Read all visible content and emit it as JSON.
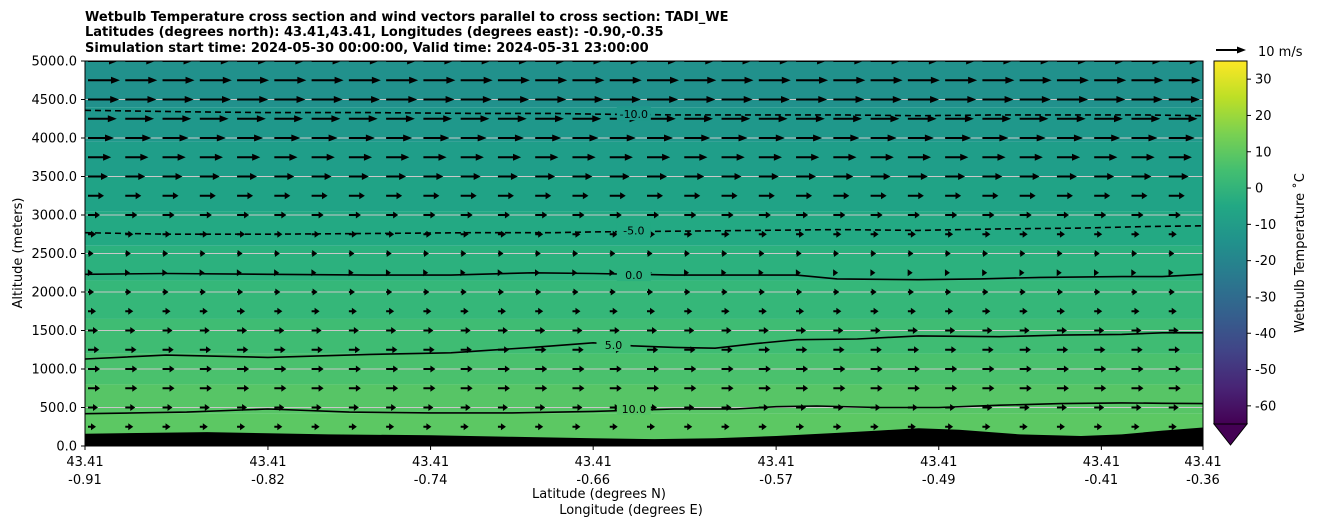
{
  "chart_data": {
    "type": "heatmap",
    "title_lines": [
      "Wetbulb Temperature cross section and wind vectors parallel to cross section: TADI_WE",
      "Latitudes (degrees north): 43.41,43.41, Longitudes (degrees east): -0.90,-0.35",
      "Simulation start time: 2024-05-30 00:00:00, Valid time: 2024-05-31 23:00:00"
    ],
    "ylabel": "Altitude (meters)",
    "xlabel_lines": [
      "Latitude (degrees N)",
      "Longitude (degrees E)"
    ],
    "ylim": [
      0,
      5000
    ],
    "y_ticks": [
      {
        "value": 0,
        "label": "0.0"
      },
      {
        "value": 500,
        "label": "500.0"
      },
      {
        "value": 1000,
        "label": "1000.0"
      },
      {
        "value": 1500,
        "label": "1500.0"
      },
      {
        "value": 2000,
        "label": "2000.0"
      },
      {
        "value": 2500,
        "label": "2500.0"
      },
      {
        "value": 3000,
        "label": "3000.0"
      },
      {
        "value": 3500,
        "label": "3500.0"
      },
      {
        "value": 4000,
        "label": "4000.0"
      },
      {
        "value": 4500,
        "label": "4500.0"
      },
      {
        "value": 5000,
        "label": "5000.0"
      }
    ],
    "xlim": [
      -0.91,
      -0.36
    ],
    "x_ticks": [
      {
        "value": -0.91,
        "lat": "43.41",
        "lon": "-0.91"
      },
      {
        "value": -0.82,
        "lat": "43.41",
        "lon": "-0.82"
      },
      {
        "value": -0.74,
        "lat": "43.41",
        "lon": "-0.74"
      },
      {
        "value": -0.66,
        "lat": "43.41",
        "lon": "-0.66"
      },
      {
        "value": -0.57,
        "lat": "43.41",
        "lon": "-0.57"
      },
      {
        "value": -0.49,
        "lat": "43.41",
        "lon": "-0.49"
      },
      {
        "value": -0.41,
        "lat": "43.41",
        "lon": "-0.41"
      },
      {
        "value": -0.36,
        "lat": "43.41",
        "lon": "-0.36"
      }
    ],
    "grid": "horizontal",
    "altitude_bands": [
      {
        "from": 0,
        "to": 420,
        "color": "#5cc863"
      },
      {
        "from": 420,
        "to": 800,
        "color": "#57c566"
      },
      {
        "from": 800,
        "to": 1200,
        "color": "#4ac16d"
      },
      {
        "from": 1200,
        "to": 1650,
        "color": "#3fbc73"
      },
      {
        "from": 1650,
        "to": 2150,
        "color": "#35b779"
      },
      {
        "from": 2150,
        "to": 2600,
        "color": "#2cb17e"
      },
      {
        "from": 2600,
        "to": 3050,
        "color": "#23a983"
      },
      {
        "from": 3050,
        "to": 3500,
        "color": "#20a386"
      },
      {
        "from": 3500,
        "to": 3950,
        "color": "#1f9e89"
      },
      {
        "from": 3950,
        "to": 4400,
        "color": "#1f988b"
      },
      {
        "from": 4400,
        "to": 5000,
        "color": "#21918c"
      }
    ],
    "terrain": {
      "color": "#000000",
      "x": [
        -0.91,
        -0.85,
        -0.79,
        -0.74,
        -0.7,
        -0.66,
        -0.63,
        -0.6,
        -0.57,
        -0.54,
        -0.52,
        -0.5,
        -0.48,
        -0.45,
        -0.42,
        -0.4,
        -0.38,
        -0.36
      ],
      "y": [
        160,
        180,
        150,
        140,
        120,
        100,
        90,
        100,
        130,
        170,
        200,
        230,
        210,
        150,
        130,
        150,
        200,
        240
      ]
    },
    "contours": [
      {
        "level": "10.0",
        "style": "solid",
        "label_x": -0.64,
        "label_y": 480,
        "x": [
          -0.91,
          -0.86,
          -0.82,
          -0.78,
          -0.74,
          -0.7,
          -0.66,
          -0.62,
          -0.59,
          -0.57,
          -0.55,
          -0.52,
          -0.49,
          -0.46,
          -0.43,
          -0.4,
          -0.38,
          -0.36
        ],
        "y": [
          420,
          440,
          480,
          440,
          430,
          430,
          450,
          480,
          480,
          510,
          520,
          500,
          500,
          530,
          550,
          560,
          555,
          550
        ]
      },
      {
        "level": "5.0",
        "style": "solid",
        "label_x": -0.65,
        "label_y": 1310,
        "x": [
          -0.91,
          -0.87,
          -0.82,
          -0.77,
          -0.73,
          -0.69,
          -0.66,
          -0.64,
          -0.62,
          -0.6,
          -0.58,
          -0.56,
          -0.53,
          -0.5,
          -0.46,
          -0.43,
          -0.4,
          -0.38,
          -0.36
        ],
        "y": [
          1130,
          1180,
          1150,
          1190,
          1210,
          1280,
          1340,
          1300,
          1280,
          1270,
          1330,
          1380,
          1390,
          1430,
          1420,
          1440,
          1450,
          1470,
          1470
        ]
      },
      {
        "level": "0.0",
        "style": "solid",
        "label_x": -0.64,
        "label_y": 2220,
        "x": [
          -0.91,
          -0.87,
          -0.82,
          -0.77,
          -0.73,
          -0.69,
          -0.66,
          -0.62,
          -0.58,
          -0.56,
          -0.54,
          -0.5,
          -0.47,
          -0.44,
          -0.4,
          -0.38,
          -0.36
        ],
        "y": [
          2230,
          2240,
          2230,
          2220,
          2220,
          2250,
          2240,
          2220,
          2220,
          2220,
          2170,
          2160,
          2170,
          2190,
          2200,
          2200,
          2230
        ]
      },
      {
        "level": "-5.0",
        "style": "dashed",
        "label_x": -0.64,
        "label_y": 2800,
        "x": [
          -0.91,
          -0.87,
          -0.82,
          -0.77,
          -0.72,
          -0.68,
          -0.66,
          -0.62,
          -0.58,
          -0.54,
          -0.5,
          -0.46,
          -0.42,
          -0.39,
          -0.36
        ],
        "y": [
          2770,
          2750,
          2750,
          2760,
          2770,
          2770,
          2780,
          2790,
          2800,
          2810,
          2800,
          2820,
          2830,
          2850,
          2860
        ]
      },
      {
        "level": "-10.0",
        "style": "dashed",
        "label_x": -0.64,
        "label_y": 4310,
        "x": [
          -0.91,
          -0.86,
          -0.82,
          -0.77,
          -0.72,
          -0.68,
          -0.66,
          -0.62,
          -0.58,
          -0.54,
          -0.5,
          -0.46,
          -0.42,
          -0.39,
          -0.36
        ],
        "y": [
          4360,
          4340,
          4330,
          4330,
          4320,
          4320,
          4310,
          4300,
          4300,
          4300,
          4290,
          4300,
          4300,
          4300,
          4290
        ]
      }
    ],
    "colorbar": {
      "label": "Wetbulb Temperature $^\\circ$C",
      "label_display": "Wetbulb Temperature ˚C",
      "min": -65,
      "max": 35,
      "extend": "min",
      "ticks": [
        "-60",
        "-50",
        "-40",
        "-30",
        "-20",
        "-10",
        "0",
        "10",
        "20",
        "30"
      ],
      "tick_values": [
        -60,
        -50,
        -40,
        -30,
        -20,
        -10,
        0,
        10,
        20,
        30
      ],
      "colors": [
        "#440154",
        "#482475",
        "#414487",
        "#355f8d",
        "#2a788e",
        "#21918c",
        "#22a884",
        "#44bf70",
        "#7ad151",
        "#bddf26",
        "#fde725"
      ]
    },
    "wind": {
      "reference_label": "10 m/s",
      "reference_speed": 10,
      "levels": [
        {
          "alt": 50,
          "speed": 0.2
        },
        {
          "alt": 250,
          "speed": 2.0
        },
        {
          "alt": 500,
          "speed": 2.5
        },
        {
          "alt": 750,
          "speed": 3.0
        },
        {
          "alt": 1000,
          "speed": 3.0
        },
        {
          "alt": 1250,
          "speed": 2.8
        },
        {
          "alt": 1500,
          "speed": 2.5
        },
        {
          "alt": 1750,
          "speed": 2.0
        },
        {
          "alt": 2000,
          "speed": 1.5
        },
        {
          "alt": 2250,
          "speed": 1.2
        },
        {
          "alt": 2500,
          "speed": 1.4
        },
        {
          "alt": 2750,
          "speed": 2.0
        },
        {
          "alt": 3000,
          "speed": 3.0
        },
        {
          "alt": 3250,
          "speed": 4.0
        },
        {
          "alt": 3500,
          "speed": 5.0
        },
        {
          "alt": 3750,
          "speed": 5.8
        },
        {
          "alt": 4000,
          "speed": 6.5
        },
        {
          "alt": 4250,
          "speed": 7.2
        },
        {
          "alt": 4500,
          "speed": 7.8
        },
        {
          "alt": 4750,
          "speed": 8.0
        },
        {
          "alt": 5000,
          "speed": 7.5
        }
      ],
      "columns": 30
    }
  }
}
